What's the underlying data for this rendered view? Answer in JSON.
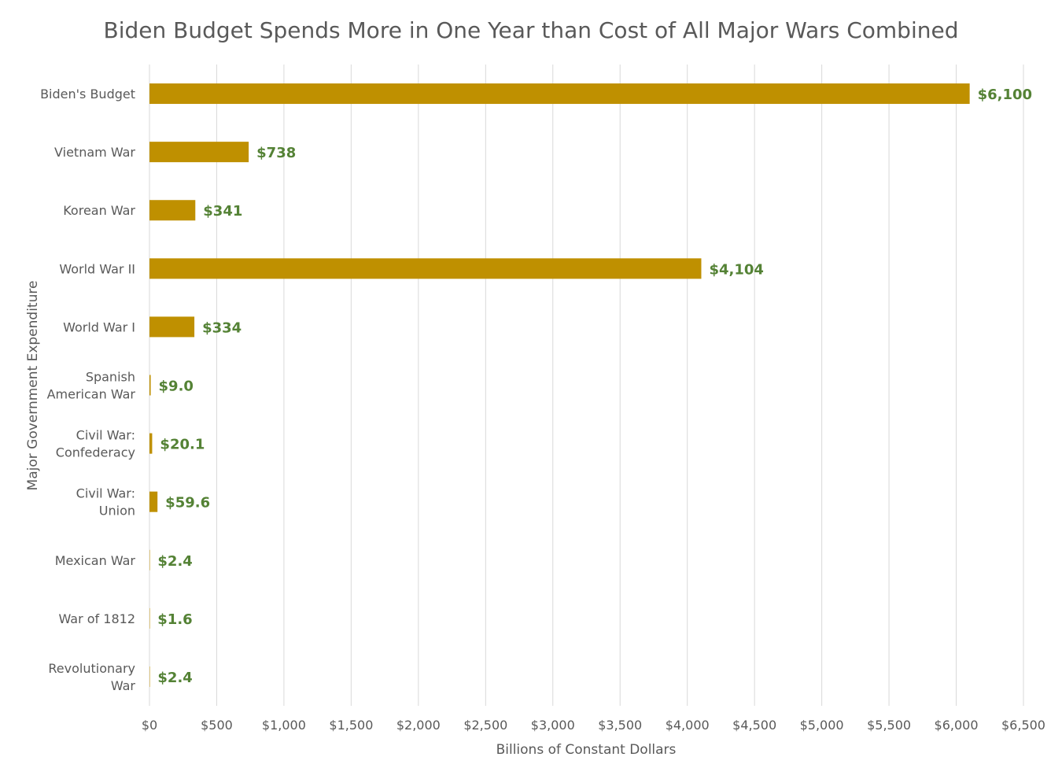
{
  "chart_data": {
    "type": "bar",
    "orientation": "horizontal",
    "title": "Biden Budget Spends More in One Year than Cost of All Major Wars Combined",
    "xlabel": "Billions of Constant Dollars",
    "ylabel": "Major Government Expenditure",
    "categories": [
      [
        "Biden's Budget"
      ],
      [
        "Vietnam War"
      ],
      [
        "Korean War"
      ],
      [
        "World War II"
      ],
      [
        "World War I"
      ],
      [
        "Spanish",
        "American War"
      ],
      [
        "Civil War:",
        "Confederacy"
      ],
      [
        "Civil War:",
        "Union"
      ],
      [
        "Mexican War"
      ],
      [
        "War of 1812"
      ],
      [
        "Revolutionary",
        "War"
      ]
    ],
    "values": [
      6100,
      738,
      341,
      4104,
      334,
      9.0,
      20.1,
      59.6,
      2.4,
      1.6,
      2.4
    ],
    "data_labels": [
      "$6,100",
      "$738",
      "$341",
      "$4,104",
      "$334",
      "$9.0",
      "$20.1",
      "$59.6",
      "$2.4",
      "$1.6",
      "$2.4"
    ],
    "xlim": [
      0,
      6500
    ],
    "x_ticks": [
      0,
      500,
      1000,
      1500,
      2000,
      2500,
      3000,
      3500,
      4000,
      4500,
      5000,
      5500,
      6000,
      6500
    ],
    "x_tick_labels": [
      "$0",
      "$500",
      "$1,000",
      "$1,500",
      "$2,000",
      "$2,500",
      "$3,000",
      "$3,500",
      "$4,000",
      "$4,500",
      "$5,000",
      "$5,500",
      "$6,000",
      "$6,500"
    ],
    "grid": true,
    "legend": "none"
  },
  "colors": {
    "bar": "#BF9000",
    "data_label": "#548235",
    "grid": "#D9D9D9",
    "text": "#595959"
  }
}
